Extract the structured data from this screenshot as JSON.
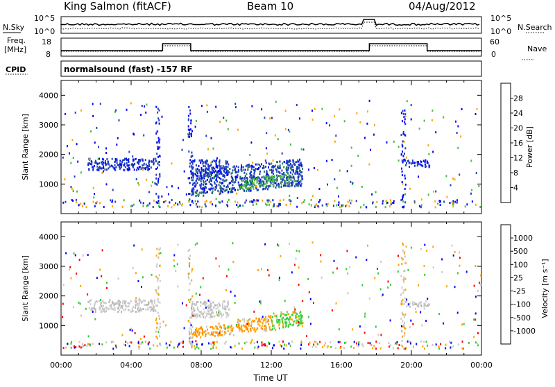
{
  "header": {
    "station": "King Salmon (fitACF)",
    "beam": "Beam 10",
    "date": "04/Aug/2012"
  },
  "aux_panels": {
    "nsky_label": "N.Sky",
    "nsky_ticks": [
      "10^5",
      "10^0"
    ],
    "nsearch_label": "N.Search",
    "nsearch_ticks": [
      "10^5",
      "10^0"
    ],
    "freq_label": "Freq.",
    "freq_unit": "[MHz]",
    "freq_ticks": [
      "18",
      "8"
    ],
    "nave_label": "Nave",
    "nave_ticks": [
      "60",
      "0"
    ],
    "cpid_label": "CPID",
    "program_text": "normalsound (fast) -157 RF"
  },
  "colors": {
    "power_scale": [
      "#0000ff",
      "#1f3fbf",
      "#2f7f5f",
      "#3fbf3f",
      "#ffa500",
      "#ff6a00",
      "#ff0000"
    ],
    "velocity_scale": [
      "#ff0000",
      "#ff6a00",
      "#ffa500",
      "#c8c8c8",
      "#c8c8c8",
      "#33cc33",
      "#2f7f5f",
      "#1f3fbf",
      "#0000ff"
    ]
  },
  "chart_data": [
    {
      "type": "heatmap",
      "name": "power",
      "ylabel": "Slant Range [km]",
      "xlabel": "",
      "ylim": [
        0,
        4500
      ],
      "yticks": [
        "1000",
        "2000",
        "3000",
        "4000"
      ],
      "colorbar_label": "Power [dB]",
      "colorbar_ticks": [
        "4",
        "8",
        "12",
        "16",
        "20",
        "24",
        "28"
      ],
      "scatter_regions": [
        {
          "t_start": 1.5,
          "t_end": 5.4,
          "range_start": 1450,
          "range_end": 1850,
          "level": "low"
        },
        {
          "t_start": 7.4,
          "t_end": 9.6,
          "range_start": 1250,
          "range_end": 1800,
          "level": "low"
        },
        {
          "t_start": 7.4,
          "t_end": 13.8,
          "range_start": 550,
          "range_end": 1450,
          "level": "medium"
        },
        {
          "t_start": 10.2,
          "t_end": 13.0,
          "range_start": 800,
          "range_end": 1150,
          "level": "high"
        },
        {
          "t_start": 19.6,
          "t_end": 21.0,
          "range_start": 1550,
          "range_end": 1800,
          "level": "low"
        }
      ]
    },
    {
      "type": "heatmap",
      "name": "velocity",
      "ylabel": "Slant Range [km]",
      "xlabel": "Time UT",
      "ylim": [
        0,
        4500
      ],
      "yticks": [
        "1000",
        "2000",
        "3000",
        "4000"
      ],
      "xticks": [
        "00:00",
        "04:00",
        "08:00",
        "12:00",
        "16:00",
        "20:00",
        "00:00"
      ],
      "colorbar_label": "Velocity [m s⁻¹]",
      "colorbar_ticks": [
        "-1000",
        "-500",
        "-100",
        "-25",
        "25",
        "100",
        "500",
        "1000"
      ],
      "scatter_regions": [
        {
          "t_start": 1.5,
          "t_end": 5.4,
          "range_start": 1450,
          "range_end": 1850,
          "level": "gray"
        },
        {
          "t_start": 7.4,
          "t_end": 9.6,
          "range_start": 1250,
          "range_end": 1800,
          "level": "gray"
        },
        {
          "t_start": 7.4,
          "t_end": 10.0,
          "range_start": 550,
          "range_end": 900,
          "level": "orange"
        },
        {
          "t_start": 10.0,
          "t_end": 12.0,
          "range_start": 700,
          "range_end": 1200,
          "level": "orange"
        },
        {
          "t_start": 12.0,
          "t_end": 13.8,
          "range_start": 850,
          "range_end": 1400,
          "level": "green"
        },
        {
          "t_start": 19.6,
          "t_end": 21.0,
          "range_start": 1550,
          "range_end": 1800,
          "level": "gray"
        }
      ]
    }
  ]
}
